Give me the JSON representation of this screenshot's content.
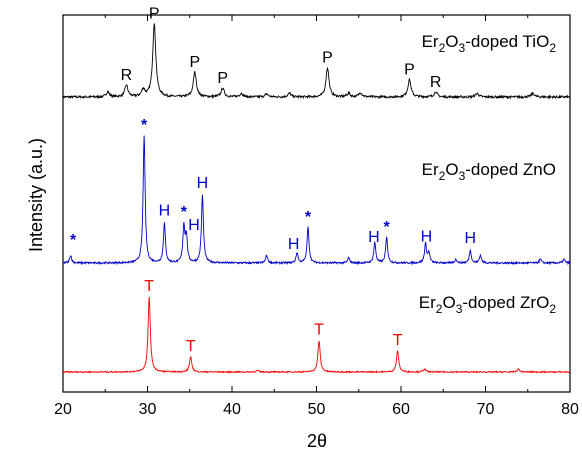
{
  "chart_data": {
    "type": "line",
    "xlabel": "2θ",
    "ylabel": "Intensity (a.u.)",
    "xlim": [
      20,
      80
    ],
    "x_ticks": [
      20,
      30,
      40,
      50,
      60,
      70,
      80
    ],
    "grid": false,
    "legend": "none",
    "series": [
      {
        "label": {
          "base": "Er",
          "sub1": "2",
          "mid": "O",
          "sub2": "3",
          "rest": "-doped TiO",
          "sub3": "2"
        },
        "color": "#000000",
        "peaks": [
          {
            "x": 25.3,
            "h": 0.07
          },
          {
            "x": 27.5,
            "h": 0.16
          },
          {
            "x": 29.5,
            "h": 0.1
          },
          {
            "x": 30.8,
            "h": 1.0
          },
          {
            "x": 35.6,
            "h": 0.34
          },
          {
            "x": 38.9,
            "h": 0.12
          },
          {
            "x": 41.1,
            "h": 0.05
          },
          {
            "x": 44.1,
            "h": 0.04
          },
          {
            "x": 46.8,
            "h": 0.05
          },
          {
            "x": 51.3,
            "h": 0.4
          },
          {
            "x": 53.8,
            "h": 0.05
          },
          {
            "x": 55.2,
            "h": 0.06
          },
          {
            "x": 61.0,
            "h": 0.24
          },
          {
            "x": 64.1,
            "h": 0.07
          },
          {
            "x": 69.0,
            "h": 0.05
          },
          {
            "x": 75.6,
            "h": 0.05
          }
        ],
        "markers": [
          {
            "x": 27.5,
            "text": "R"
          },
          {
            "x": 30.8,
            "text": "P"
          },
          {
            "x": 35.6,
            "text": "P"
          },
          {
            "x": 38.9,
            "text": "P"
          },
          {
            "x": 51.3,
            "text": "P"
          },
          {
            "x": 61.0,
            "text": "P"
          },
          {
            "x": 64.1,
            "text": "R"
          }
        ]
      },
      {
        "label": {
          "base": "Er",
          "sub1": "2",
          "mid": "O",
          "sub2": "3",
          "rest": "-doped ZnO",
          "sub3": ""
        },
        "color": "#0000cc",
        "peaks": [
          {
            "x": 20.9,
            "h": 0.06
          },
          {
            "x": 29.6,
            "h": 1.0
          },
          {
            "x": 32.0,
            "h": 0.31
          },
          {
            "x": 34.3,
            "h": 0.28
          },
          {
            "x": 34.6,
            "h": 0.2
          },
          {
            "x": 36.5,
            "h": 0.53
          },
          {
            "x": 44.1,
            "h": 0.06
          },
          {
            "x": 47.7,
            "h": 0.08
          },
          {
            "x": 49.0,
            "h": 0.28
          },
          {
            "x": 53.8,
            "h": 0.04
          },
          {
            "x": 56.9,
            "h": 0.16
          },
          {
            "x": 58.3,
            "h": 0.2
          },
          {
            "x": 62.9,
            "h": 0.15
          },
          {
            "x": 63.3,
            "h": 0.08
          },
          {
            "x": 66.5,
            "h": 0.03
          },
          {
            "x": 68.2,
            "h": 0.1
          },
          {
            "x": 69.4,
            "h": 0.06
          },
          {
            "x": 76.5,
            "h": 0.03
          },
          {
            "x": 79.3,
            "h": 0.03
          }
        ],
        "markers": [
          {
            "x": 21.2,
            "text": "*"
          },
          {
            "x": 29.6,
            "text": "*"
          },
          {
            "x": 32.0,
            "text": "H"
          },
          {
            "x": 34.3,
            "text": "*"
          },
          {
            "x": 35.5,
            "text": "H"
          },
          {
            "x": 36.5,
            "text": "H"
          },
          {
            "x": 47.3,
            "text": "H"
          },
          {
            "x": 49.0,
            "text": "*"
          },
          {
            "x": 56.8,
            "text": "H"
          },
          {
            "x": 58.3,
            "text": "*"
          },
          {
            "x": 63.0,
            "text": "H"
          },
          {
            "x": 68.2,
            "text": "H"
          }
        ]
      },
      {
        "label": {
          "base": "Er",
          "sub1": "2",
          "mid": "O",
          "sub2": "3",
          "rest": "-doped ZrO",
          "sub3": "2"
        },
        "color": "#ff0000",
        "peaks": [
          {
            "x": 30.2,
            "h": 1.0
          },
          {
            "x": 35.1,
            "h": 0.2
          },
          {
            "x": 43.0,
            "h": 0.02
          },
          {
            "x": 50.3,
            "h": 0.42
          },
          {
            "x": 59.6,
            "h": 0.28
          },
          {
            "x": 62.8,
            "h": 0.04
          },
          {
            "x": 73.9,
            "h": 0.04
          }
        ],
        "markers": [
          {
            "x": 30.2,
            "text": "T"
          },
          {
            "x": 35.1,
            "text": "T"
          },
          {
            "x": 50.3,
            "text": "T"
          },
          {
            "x": 59.6,
            "text": "T"
          }
        ]
      }
    ]
  }
}
